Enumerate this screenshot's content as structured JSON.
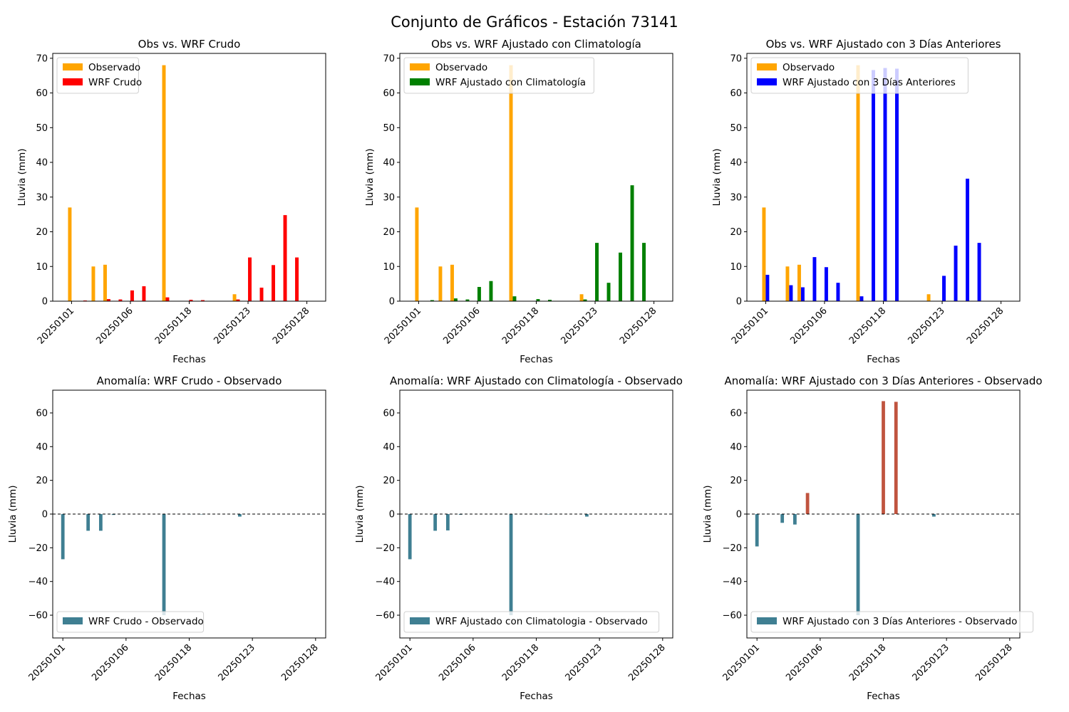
{
  "figure": {
    "suptitle": "Conjunto de Gráficos - Estación 73141"
  },
  "chart_data": [
    {
      "type": "bar",
      "title": "Obs vs. WRF Crudo",
      "xlabel": "Fechas",
      "ylabel": "Lluvia (mm)",
      "ylim": [
        0,
        71.4
      ],
      "xlim": [
        -1.6,
        21.6
      ],
      "yticks": [
        0,
        10,
        20,
        30,
        40,
        50,
        60,
        70
      ],
      "xticks": [
        0,
        5,
        10,
        15,
        20
      ],
      "xtick_labels": [
        "20250101",
        "20250106",
        "20250118",
        "20250123",
        "20250128"
      ],
      "legend": "top-left",
      "grid": false,
      "x": [
        0,
        1,
        2,
        3,
        4,
        5,
        6,
        7,
        8,
        9,
        10,
        11,
        12,
        13,
        14,
        15,
        16,
        17,
        18,
        19,
        20
      ],
      "series": [
        {
          "name": "Observado",
          "color": "#ffa500",
          "offset": -0.15,
          "values": [
            27,
            0,
            10,
            10.5,
            0,
            0,
            0,
            0,
            68,
            0,
            0,
            0,
            0,
            0,
            2,
            0,
            0,
            0,
            0,
            0,
            0
          ]
        },
        {
          "name": "WRF Crudo",
          "color": "#ff0000",
          "offset": 0.15,
          "values": [
            0,
            0.2,
            0.1,
            0.6,
            0.5,
            3.1,
            4.3,
            0,
            1.1,
            0,
            0.4,
            0.3,
            0,
            0,
            0.5,
            12.6,
            3.9,
            10.4,
            24.8,
            12.6,
            0
          ]
        }
      ]
    },
    {
      "type": "bar",
      "title": "Obs vs. WRF Ajustado con Climatología",
      "xlabel": "Fechas",
      "ylabel": "Lluvia (mm)",
      "ylim": [
        0,
        71.4
      ],
      "xlim": [
        -1.6,
        21.6
      ],
      "yticks": [
        0,
        10,
        20,
        30,
        40,
        50,
        60,
        70
      ],
      "xticks": [
        0,
        5,
        10,
        15,
        20
      ],
      "xtick_labels": [
        "20250101",
        "20250106",
        "20250118",
        "20250123",
        "20250128"
      ],
      "legend": "top-left",
      "grid": false,
      "x": [
        0,
        1,
        2,
        3,
        4,
        5,
        6,
        7,
        8,
        9,
        10,
        11,
        12,
        13,
        14,
        15,
        16,
        17,
        18,
        19,
        20
      ],
      "series": [
        {
          "name": "Observado",
          "color": "#ffa500",
          "offset": -0.15,
          "values": [
            27,
            0,
            10,
            10.5,
            0,
            0,
            0,
            0,
            68,
            0,
            0,
            0,
            0,
            0,
            2,
            0,
            0,
            0,
            0,
            0,
            0
          ]
        },
        {
          "name": "WRF Ajustado con Climatología",
          "color": "#008000",
          "offset": 0.15,
          "values": [
            0,
            0.3,
            0.1,
            0.8,
            0.5,
            4.1,
            5.8,
            0,
            1.4,
            0,
            0.6,
            0.4,
            0,
            0,
            0.5,
            16.8,
            5.3,
            14,
            33.4,
            16.8,
            0
          ]
        }
      ]
    },
    {
      "type": "bar",
      "title": "Obs vs. WRF Ajustado con 3 Días Anteriores",
      "xlabel": "Fechas",
      "ylabel": "Lluvia (mm)",
      "ylim": [
        0,
        71.4
      ],
      "xlim": [
        -1.6,
        21.6
      ],
      "yticks": [
        0,
        10,
        20,
        30,
        40,
        50,
        60,
        70
      ],
      "xticks": [
        0,
        5,
        10,
        15,
        20
      ],
      "xtick_labels": [
        "20250101",
        "20250106",
        "20250118",
        "20250123",
        "20250128"
      ],
      "legend": "top-left",
      "grid": false,
      "x": [
        0,
        1,
        2,
        3,
        4,
        5,
        6,
        7,
        8,
        9,
        10,
        11,
        12,
        13,
        14,
        15,
        16,
        17,
        18,
        19,
        20
      ],
      "series": [
        {
          "name": "Observado",
          "color": "#ffa500",
          "offset": -0.15,
          "values": [
            27,
            0,
            10,
            10.5,
            0,
            0,
            0,
            0,
            68,
            0,
            0,
            0,
            0,
            0,
            2,
            0,
            0,
            0,
            0,
            0,
            0
          ]
        },
        {
          "name": "WRF Ajustado con 3 Días Anteriores",
          "color": "#0000ff",
          "offset": 0.15,
          "values": [
            7.6,
            0,
            4.6,
            4,
            12.7,
            9.8,
            5.3,
            0,
            1.4,
            66.6,
            67.2,
            67,
            0,
            0,
            0,
            7.3,
            16,
            35.3,
            16.8,
            0,
            0
          ]
        }
      ]
    },
    {
      "type": "bar",
      "title": "Anomalía: WRF Crudo - Observado",
      "xlabel": "Fechas",
      "ylabel": "Lluvia (mm)",
      "ylim": [
        -73.5,
        73.5
      ],
      "xlim": [
        -0.8,
        20.8
      ],
      "yticks": [
        -60,
        -40,
        -20,
        0,
        20,
        40,
        60
      ],
      "xticks": [
        0,
        5,
        10,
        15,
        20
      ],
      "xtick_labels": [
        "20250101",
        "20250106",
        "20250118",
        "20250123",
        "20250128"
      ],
      "legend": "bottom-left",
      "grid": false,
      "zero_line": true,
      "positive_color": "#c0543f",
      "negative_color": "#3f7f92",
      "series": [
        {
          "name": "WRF Crudo - Observado",
          "color": "#3f7f92",
          "x": [
            0,
            2,
            3,
            4,
            8,
            10,
            11,
            14
          ],
          "values": [
            -26.8,
            -9.9,
            -9.9,
            -0.5,
            -60,
            -0.2,
            -0.1,
            -1.5
          ]
        }
      ]
    },
    {
      "type": "bar",
      "title": "Anomalía: WRF Ajustado con Climatología - Observado",
      "xlabel": "Fechas",
      "ylabel": "Lluvia (mm)",
      "ylim": [
        -73.5,
        73.5
      ],
      "xlim": [
        -0.8,
        20.8
      ],
      "yticks": [
        -60,
        -40,
        -20,
        0,
        20,
        40,
        60
      ],
      "xticks": [
        0,
        5,
        10,
        15,
        20
      ],
      "xtick_labels": [
        "20250101",
        "20250106",
        "20250118",
        "20250123",
        "20250128"
      ],
      "legend": "bottom-left",
      "grid": false,
      "zero_line": true,
      "positive_color": "#c0543f",
      "negative_color": "#3f7f92",
      "series": [
        {
          "name": "WRF Ajustado con Climatologia - Observado",
          "color": "#3f7f92",
          "x": [
            0,
            2,
            3,
            4,
            8,
            10,
            11,
            14
          ],
          "values": [
            -26.8,
            -9.9,
            -9.7,
            -0.4,
            -60,
            -0.2,
            -0.1,
            -1.5
          ]
        }
      ]
    },
    {
      "type": "bar",
      "title": "Anomalía: WRF Ajustado con 3 Días Anteriores - Observado",
      "xlabel": "Fechas",
      "ylabel": "Lluvia (mm)",
      "ylim": [
        -73.5,
        73.5
      ],
      "xlim": [
        -0.8,
        20.8
      ],
      "yticks": [
        -60,
        -40,
        -20,
        0,
        20,
        40,
        60
      ],
      "xticks": [
        0,
        5,
        10,
        15,
        20
      ],
      "xtick_labels": [
        "20250101",
        "20250106",
        "20250118",
        "20250123",
        "20250128"
      ],
      "legend": "bottom-left",
      "grid": false,
      "zero_line": true,
      "positive_color": "#c0543f",
      "negative_color": "#3f7f92",
      "series": [
        {
          "name": "WRF Ajustado con 3 Días Anteriores - Observado",
          "color": "#3f7f92",
          "x": [
            0,
            2,
            3,
            4,
            8,
            10,
            11,
            14
          ],
          "values": [
            -19.2,
            -5.2,
            -6.2,
            12.5,
            -60,
            67,
            66.6,
            -1.5
          ]
        }
      ]
    }
  ]
}
